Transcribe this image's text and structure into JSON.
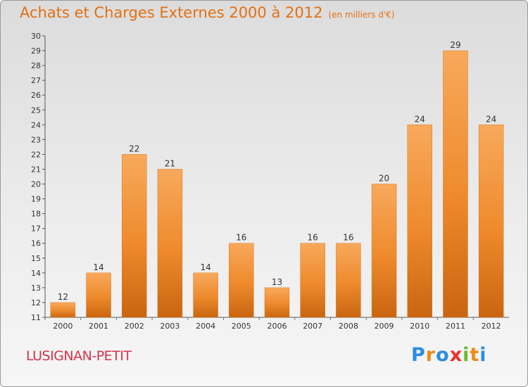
{
  "title": "Achats et Charges Externes 2000 à 2012",
  "subtitle": "(en milliers d'€)",
  "commune": "LUSIGNAN-PETIT",
  "logo": {
    "letters": [
      "P",
      "r",
      "o",
      "x",
      "i",
      "t",
      "i"
    ],
    "colors": [
      "#2a8de0",
      "#f08a16",
      "#2a8de0",
      "#e8302a",
      "#6cb82e",
      "#f08a16",
      "#2a8de0"
    ]
  },
  "colors": {
    "bar": "#f08a2a",
    "bar_light": "#f6a55a",
    "bar_dark": "#c8650f",
    "title": "#e46f12",
    "commune": "#d8334a"
  },
  "chart_data": {
    "type": "bar",
    "categories": [
      "2000",
      "2001",
      "2002",
      "2003",
      "2004",
      "2005",
      "2006",
      "2007",
      "2008",
      "2009",
      "2010",
      "2011",
      "2012"
    ],
    "values": [
      12,
      14,
      22,
      21,
      14,
      16,
      13,
      16,
      16,
      20,
      24,
      29,
      24
    ],
    "ylim": [
      11,
      30
    ],
    "yticks": [
      "11",
      "12",
      "13",
      "14",
      "15",
      "16",
      "17",
      "18",
      "19",
      "20",
      "21",
      "22",
      "23",
      "24",
      "25",
      "26",
      "27",
      "28",
      "29",
      "30"
    ],
    "xlabel": "",
    "ylabel": "",
    "grid": false,
    "legend": "none"
  }
}
